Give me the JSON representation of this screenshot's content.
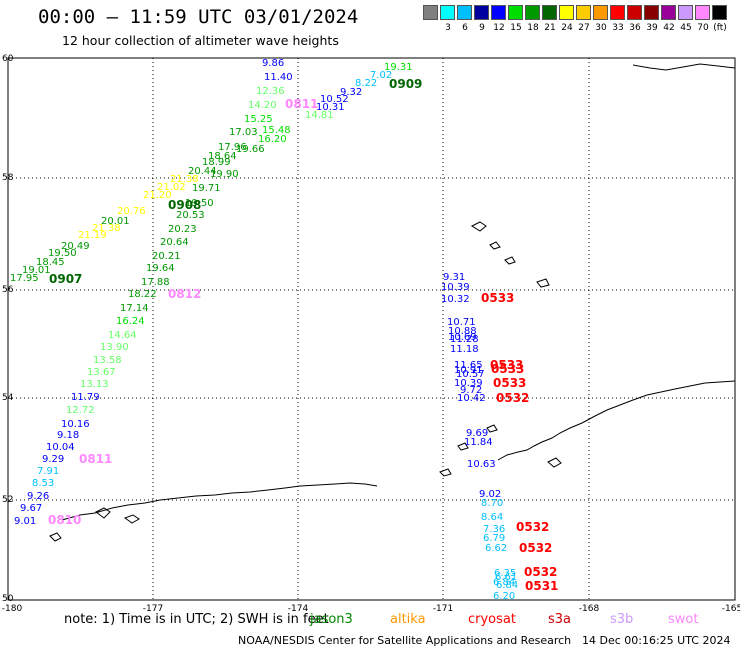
{
  "title": "00:00 – 11:59 UTC 03/01/2024",
  "subtitle": "12 hour collection of altimeter wave heights",
  "scale": {
    "unit": "(ft)",
    "bins": [
      {
        "color": "#808080",
        "label": ""
      },
      {
        "color": "#00ffff",
        "label": "3"
      },
      {
        "color": "#00bfff",
        "label": "6"
      },
      {
        "color": "#00009e",
        "label": "9"
      },
      {
        "color": "#0000ff",
        "label": "12"
      },
      {
        "color": "#00dd00",
        "label": "15"
      },
      {
        "color": "#009900",
        "label": "18"
      },
      {
        "color": "#006600",
        "label": "21"
      },
      {
        "color": "#ffff00",
        "label": "24"
      },
      {
        "color": "#ffcc00",
        "label": "27"
      },
      {
        "color": "#ff9900",
        "label": "30"
      },
      {
        "color": "#ff0000",
        "label": "33"
      },
      {
        "color": "#cc0000",
        "label": "36"
      },
      {
        "color": "#880000",
        "label": "39"
      },
      {
        "color": "#990099",
        "label": "42"
      },
      {
        "color": "#cc99ff",
        "label": "45"
      },
      {
        "color": "#ff88ff",
        "label": "70"
      },
      {
        "color": "#000000",
        "label": ""
      }
    ]
  },
  "axes": {
    "lon_labels": [
      "-180",
      "-177",
      "-174",
      "-171",
      "-168",
      "-165"
    ],
    "lat_labels": [
      "60",
      "58",
      "56",
      "54",
      "52",
      "50"
    ]
  },
  "notes": "note:  1) Time is in UTC; 2) SWH is in feet",
  "satellites": [
    {
      "name": "jason3",
      "color": "#008800"
    },
    {
      "name": "altika",
      "color": "#ff9900"
    },
    {
      "name": "cryosat",
      "color": "#ff0000"
    },
    {
      "name": "s3a",
      "color": "#cc0000"
    },
    {
      "name": "s3b",
      "color": "#cc99ff"
    },
    {
      "name": "swot",
      "color": "#ff88ff"
    }
  ],
  "credit": "NOAA/NESDIS Center for Satellite Applications and Research",
  "timestamp": "14 Dec 00:16:25 UTC 2024",
  "pass_labels": [
    {
      "text": "0907",
      "color": "#006600"
    },
    {
      "text": "0908",
      "color": "#006600"
    },
    {
      "text": "0909",
      "color": "#006600"
    },
    {
      "text": "0811",
      "color": "#ff88ff"
    },
    {
      "text": "0812",
      "color": "#ff88ff"
    },
    {
      "text": "0811",
      "color": "#ff88ff"
    },
    {
      "text": "0810",
      "color": "#ff88ff"
    },
    {
      "text": "0533",
      "color": "#ff0000"
    },
    {
      "text": "0533",
      "color": "#ff0000"
    },
    {
      "text": "0533",
      "color": "#ff0000"
    },
    {
      "text": "0533",
      "color": "#ff0000"
    },
    {
      "text": "0532",
      "color": "#ff0000"
    },
    {
      "text": "0532",
      "color": "#ff0000"
    },
    {
      "text": "0532",
      "color": "#ff0000"
    },
    {
      "text": "0532",
      "color": "#ff0000"
    },
    {
      "text": "0531",
      "color": "#ff0000"
    }
  ],
  "wave_values": [
    {
      "v": "19.31",
      "c": "#00dd00"
    },
    {
      "v": "9.86",
      "c": "#0000ff"
    },
    {
      "v": "7.02",
      "c": "#00bfff"
    },
    {
      "v": "11.40",
      "c": "#0000ff"
    },
    {
      "v": "8.22",
      "c": "#00bfff"
    },
    {
      "v": "12.36",
      "c": "#66ff66"
    },
    {
      "v": "9.32",
      "c": "#0000ff"
    },
    {
      "v": "10.52",
      "c": "#0000ff"
    },
    {
      "v": "14.20",
      "c": "#66ff66"
    },
    {
      "v": "10.31",
      "c": "#0000ff"
    },
    {
      "v": "15.25",
      "c": "#00dd00"
    },
    {
      "v": "14.81",
      "c": "#66ff66"
    },
    {
      "v": "17.03",
      "c": "#009900"
    },
    {
      "v": "15.48",
      "c": "#00dd00"
    },
    {
      "v": "16.20",
      "c": "#00dd00"
    },
    {
      "v": "17.96",
      "c": "#009900"
    },
    {
      "v": "19.66",
      "c": "#009900"
    },
    {
      "v": "18.64",
      "c": "#009900"
    },
    {
      "v": "18.99",
      "c": "#009900"
    },
    {
      "v": "20.44",
      "c": "#009900"
    },
    {
      "v": "19.90",
      "c": "#009900"
    },
    {
      "v": "21.38",
      "c": "#ffff00"
    },
    {
      "v": "21.02",
      "c": "#ffff00"
    },
    {
      "v": "19.71",
      "c": "#009900"
    },
    {
      "v": "21.20",
      "c": "#ffff00"
    },
    {
      "v": "19.50",
      "c": "#009900"
    },
    {
      "v": "20.76",
      "c": "#ffff00"
    },
    {
      "v": "20.53",
      "c": "#009900"
    },
    {
      "v": "20.01",
      "c": "#009900"
    },
    {
      "v": "21.38",
      "c": "#ffff00"
    },
    {
      "v": "20.23",
      "c": "#009900"
    },
    {
      "v": "21.19",
      "c": "#ffff00"
    },
    {
      "v": "20.49",
      "c": "#009900"
    },
    {
      "v": "20.64",
      "c": "#009900"
    },
    {
      "v": "19.50",
      "c": "#009900"
    },
    {
      "v": "20.21",
      "c": "#009900"
    },
    {
      "v": "18.45",
      "c": "#009900"
    },
    {
      "v": "19.01",
      "c": "#009900"
    },
    {
      "v": "19.64",
      "c": "#009900"
    },
    {
      "v": "17.95",
      "c": "#009900"
    },
    {
      "v": "17.88",
      "c": "#009900"
    },
    {
      "v": "18.22",
      "c": "#009900"
    },
    {
      "v": "17.14",
      "c": "#009900"
    },
    {
      "v": "16.24",
      "c": "#00dd00"
    },
    {
      "v": "14.64",
      "c": "#66ff66"
    },
    {
      "v": "13.90",
      "c": "#66ff66"
    },
    {
      "v": "13.58",
      "c": "#66ff66"
    },
    {
      "v": "13.67",
      "c": "#66ff66"
    },
    {
      "v": "13.13",
      "c": "#66ff66"
    },
    {
      "v": "11.79",
      "c": "#0000ff"
    },
    {
      "v": "12.72",
      "c": "#66ff66"
    },
    {
      "v": "10.16",
      "c": "#0000ff"
    },
    {
      "v": "9.18",
      "c": "#0000ff"
    },
    {
      "v": "10.04",
      "c": "#0000ff"
    },
    {
      "v": "9.29",
      "c": "#0000ff"
    },
    {
      "v": "7.91",
      "c": "#00bfff"
    },
    {
      "v": "8.53",
      "c": "#00bfff"
    },
    {
      "v": "9.26",
      "c": "#0000ff"
    },
    {
      "v": "9.67",
      "c": "#0000ff"
    },
    {
      "v": "9.01",
      "c": "#0000ff"
    },
    {
      "v": "9.31",
      "c": "#0000ff"
    },
    {
      "v": "10.39",
      "c": "#0000ff"
    },
    {
      "v": "10.32",
      "c": "#0000ff"
    },
    {
      "v": "10.71",
      "c": "#0000ff"
    },
    {
      "v": "10.88",
      "c": "#0000ff"
    },
    {
      "v": "10.69",
      "c": "#0000ff"
    },
    {
      "v": "11.28",
      "c": "#0000ff"
    },
    {
      "v": "11.18",
      "c": "#0000ff"
    },
    {
      "v": "11.65",
      "c": "#0000ff"
    },
    {
      "v": "10.91",
      "c": "#0000ff"
    },
    {
      "v": "10.57",
      "c": "#0000ff"
    },
    {
      "v": "10.39",
      "c": "#0000ff"
    },
    {
      "v": "9.72",
      "c": "#0000ff"
    },
    {
      "v": "10.42",
      "c": "#0000ff"
    },
    {
      "v": "9.69",
      "c": "#0000ff"
    },
    {
      "v": "11.84",
      "c": "#0000ff"
    },
    {
      "v": "10.63",
      "c": "#0000ff"
    },
    {
      "v": "9.02",
      "c": "#0000ff"
    },
    {
      "v": "8.70",
      "c": "#00bfff"
    },
    {
      "v": "8.64",
      "c": "#00bfff"
    },
    {
      "v": "7.36",
      "c": "#00bfff"
    },
    {
      "v": "6.79",
      "c": "#00bfff"
    },
    {
      "v": "6.62",
      "c": "#00bfff"
    },
    {
      "v": "6.35",
      "c": "#00bfff"
    },
    {
      "v": "6.61",
      "c": "#00bfff"
    },
    {
      "v": "6.84",
      "c": "#00bfff"
    },
    {
      "v": "6.84",
      "c": "#00bfff"
    },
    {
      "v": "6.20",
      "c": "#00bfff"
    }
  ]
}
